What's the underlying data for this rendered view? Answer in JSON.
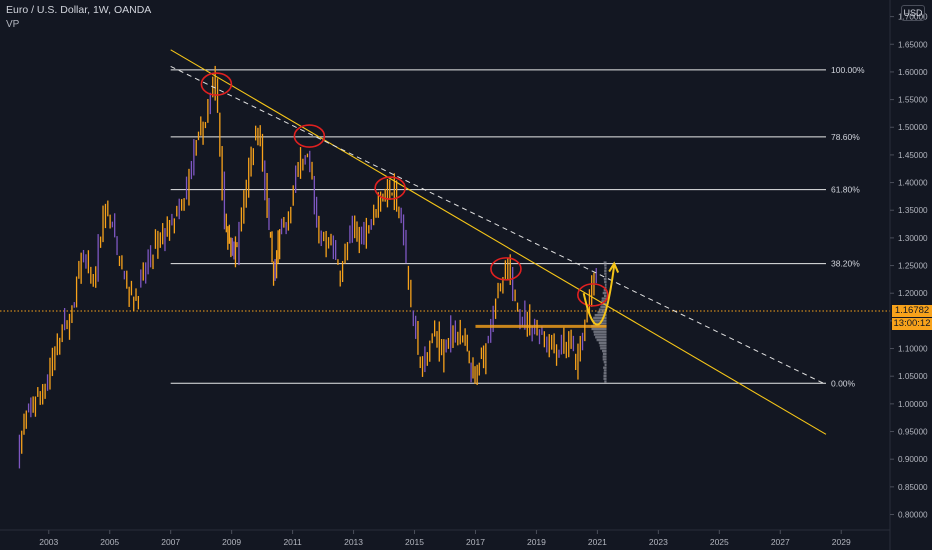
{
  "header": {
    "title": "Euro / U.S. Dollar, 1W, OANDA",
    "indicator": "VP",
    "currency": "USD"
  },
  "colors": {
    "background": "#131722",
    "candles": "#f7a21b",
    "candles_alt": "#7e57c2",
    "trendline": "#f5c518",
    "dashed_line": "#e0e0e0",
    "fib_line": "#ffffff",
    "highlight_circle": "#e02020",
    "price_line": "#f7a21b",
    "volume_profile": "#8c8f99"
  },
  "chart_data": {
    "type": "line",
    "title": "Euro / U.S. Dollar, 1W, OANDA",
    "xlabel": "",
    "ylabel": "",
    "x_ticks": [
      "2003",
      "2005",
      "2007",
      "2009",
      "2011",
      "2013",
      "2015",
      "2017",
      "2019",
      "2021",
      "2023",
      "2025",
      "2027",
      "2029"
    ],
    "y_ticks": [
      "0.80000",
      "0.85000",
      "0.90000",
      "0.95000",
      "1.00000",
      "1.05000",
      "1.10000",
      "1.15000",
      "1.20000",
      "1.25000",
      "1.30000",
      "1.35000",
      "1.40000",
      "1.45000",
      "1.50000",
      "1.55000",
      "1.60000",
      "1.65000",
      "1.70000"
    ],
    "xlim": [
      2001.4,
      2030.6
    ],
    "ylim": [
      0.772,
      1.73
    ],
    "grid": false,
    "series": [
      {
        "x": [
          2002.0,
          2002.3,
          2002.6,
          2003.0,
          2003.4,
          2003.8,
          2004.1,
          2004.5,
          2004.9,
          2005.2,
          2005.6,
          2005.9,
          2006.3,
          2006.7,
          2007.0,
          2007.4,
          2007.8,
          2008.1,
          2008.5,
          2008.8,
          2009.0,
          2009.2,
          2009.6,
          2009.9,
          2010.2,
          2010.4,
          2010.6,
          2010.9,
          2011.3,
          2011.6,
          2011.9,
          2012.3,
          2012.6,
          2013.0,
          2013.3,
          2013.7,
          2014.0,
          2014.3,
          2014.6,
          2015.0,
          2015.3,
          2015.7,
          2016.0,
          2016.3,
          2016.7,
          2016.95,
          2017.3,
          2017.7,
          2018.1,
          2018.5,
          2018.9,
          2019.3,
          2019.7,
          2020.1,
          2020.4,
          2020.7,
          2021.0
        ],
        "y": [
          0.905,
          0.98,
          1.01,
          1.04,
          1.13,
          1.16,
          1.27,
          1.21,
          1.36,
          1.3,
          1.21,
          1.19,
          1.26,
          1.3,
          1.32,
          1.35,
          1.45,
          1.5,
          1.59,
          1.34,
          1.27,
          1.28,
          1.43,
          1.51,
          1.35,
          1.22,
          1.3,
          1.34,
          1.45,
          1.43,
          1.3,
          1.29,
          1.23,
          1.32,
          1.3,
          1.35,
          1.38,
          1.39,
          1.33,
          1.14,
          1.06,
          1.13,
          1.09,
          1.14,
          1.1,
          1.04,
          1.09,
          1.19,
          1.24,
          1.16,
          1.14,
          1.12,
          1.1,
          1.11,
          1.07,
          1.18,
          1.23
        ]
      }
    ],
    "annotations": {
      "fib_levels": [
        {
          "label": "100.00%",
          "price": 1.6037
        },
        {
          "label": "78.60%",
          "price": 1.4825
        },
        {
          "label": "61.80%",
          "price": 1.3872
        },
        {
          "label": "38.20%",
          "price": 1.2535
        },
        {
          "label": "0.00%",
          "price": 1.0372
        }
      ],
      "current_price": "1.16782",
      "current_price_value": 1.16782,
      "countdown": "13:00:12",
      "trendline_solid": {
        "from": [
          2007.0,
          1.64
        ],
        "to": [
          2028.5,
          0.945
        ]
      },
      "trendline_dashed": {
        "from": [
          2007.0,
          1.61
        ],
        "to": [
          2028.5,
          1.035
        ]
      },
      "circles": [
        {
          "x": 2008.5,
          "y": 1.578
        },
        {
          "x": 2011.55,
          "y": 1.484
        },
        {
          "x": 2014.2,
          "y": 1.39
        },
        {
          "x": 2018.0,
          "y": 1.244
        },
        {
          "x": 2020.85,
          "y": 1.197
        }
      ],
      "volume_profile_peak": 1.14,
      "forecast_path": [
        [
          2020.55,
          1.2
        ],
        [
          2020.9,
          1.145
        ],
        [
          2021.25,
          1.16
        ],
        [
          2021.55,
          1.25
        ]
      ]
    }
  }
}
